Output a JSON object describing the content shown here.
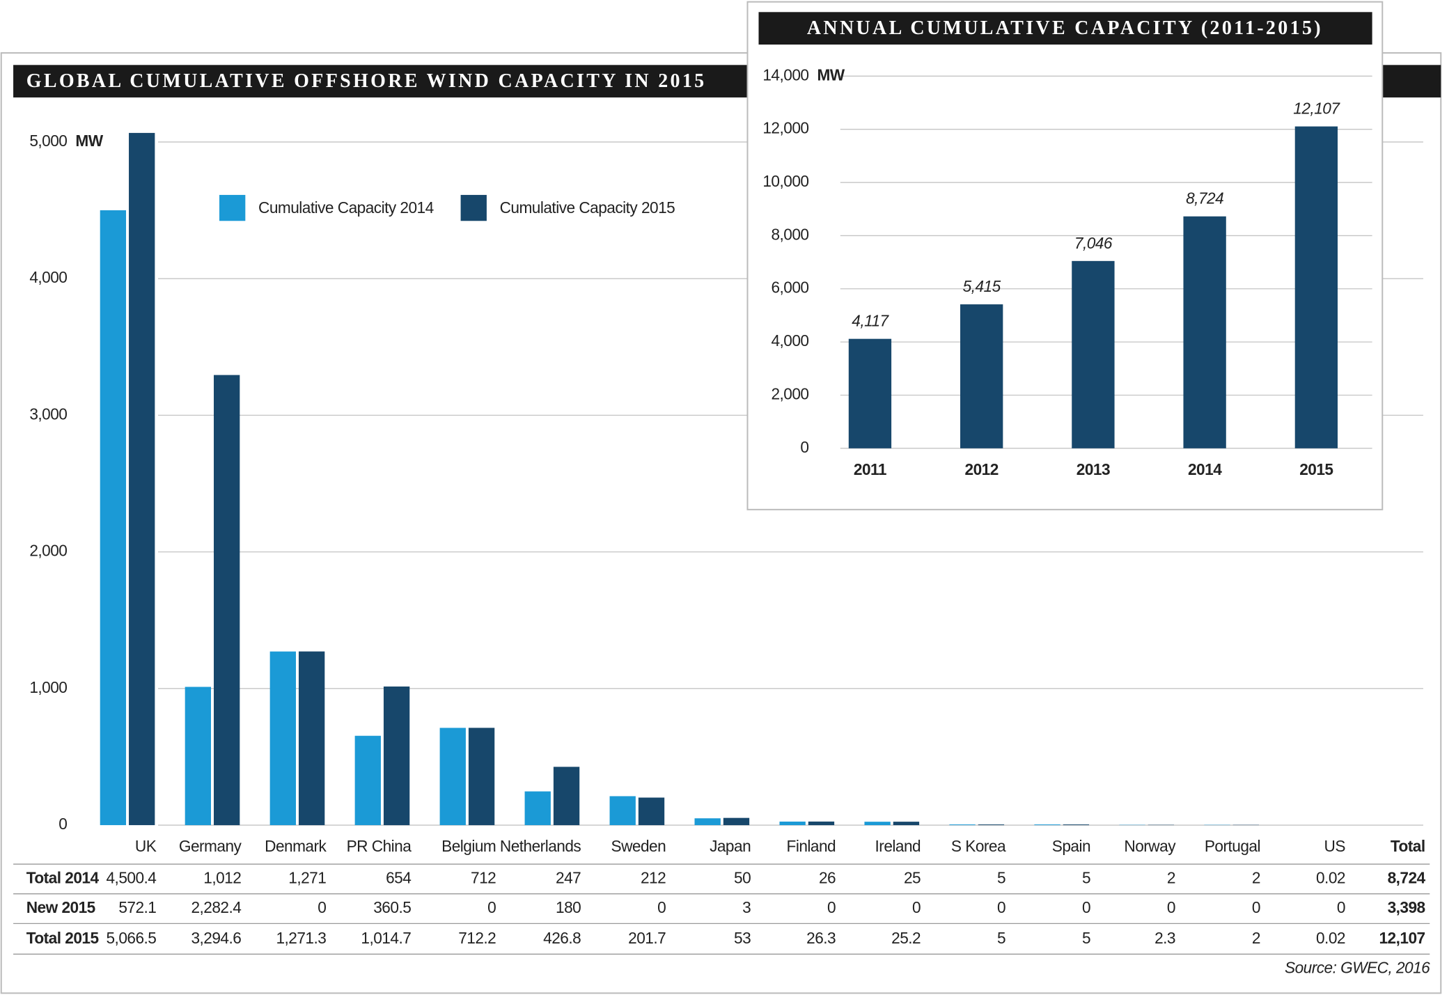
{
  "chart_data": [
    {
      "type": "bar",
      "title": "GLOBAL CUMULATIVE OFFSHORE WIND CAPACITY IN 2015",
      "y_label": "MW",
      "categories": [
        "UK",
        "Germany",
        "Denmark",
        "PR China",
        "Belgium",
        "Netherlands",
        "Sweden",
        "Japan",
        "Finland",
        "Ireland",
        "S Korea",
        "Spain",
        "Norway",
        "Portugal",
        "US"
      ],
      "series": [
        {
          "name": "Cumulative Capacity 2014",
          "color": "#1b9ad6",
          "values": [
            4500.4,
            1012,
            1271,
            654,
            712,
            247,
            212,
            50,
            26,
            25,
            5,
            5,
            2,
            2,
            0.02
          ],
          "value_labels": [
            "4,500.4",
            "1,012",
            "1,271",
            "654",
            "712",
            "247",
            "212",
            "50",
            "26",
            "25",
            "5",
            "5",
            "2",
            "2",
            "0.02"
          ]
        },
        {
          "name": "Cumulative Capacity 2015",
          "color": "#17476b",
          "values": [
            5066.5,
            3294.6,
            1271.3,
            1014.7,
            712.2,
            426.8,
            201.7,
            53,
            26.3,
            25.2,
            5,
            5,
            2.3,
            2,
            0.02
          ],
          "value_labels": [
            "5,066.5",
            "3,294.6",
            "1,271.3",
            "1,014.7",
            "712.2",
            "426.8",
            "201.7",
            "53",
            "26.3",
            "25.2",
            "5",
            "5",
            "2.3",
            "2",
            "0.02"
          ]
        }
      ],
      "ylim": [
        0,
        5000
      ],
      "yticks": [
        0,
        {
          "value": 1000,
          "label": "1,000"
        },
        {
          "value": 2000,
          "label": "2,000"
        },
        {
          "value": 3000,
          "label": "3,000"
        },
        {
          "value": 4000,
          "label": "4,000"
        },
        {
          "value": 5000,
          "label": "5,000"
        }
      ],
      "grid": true,
      "table": {
        "total_header": "Total",
        "rows": [
          {
            "label": "Total 2014",
            "total": "8,724"
          },
          {
            "label": "New 2015",
            "cells": [
              "572.1",
              "2,282.4",
              "0",
              "360.5",
              "0",
              "180",
              "0",
              "3",
              "0",
              "0",
              "0",
              "0",
              "0",
              "0",
              "0"
            ],
            "total": "3,398"
          },
          {
            "label": "Total 2015",
            "total": "12,107"
          }
        ]
      },
      "source": "Source: GWEC, 2016"
    },
    {
      "type": "bar",
      "title": "ANNUAL CUMULATIVE CAPACITY (2011-2015)",
      "y_label": "MW",
      "categories": [
        "2011",
        "2012",
        "2013",
        "2014",
        "2015"
      ],
      "values": [
        4117,
        5415,
        7046,
        8724,
        12107
      ],
      "value_labels": [
        "4,117",
        "5,415",
        "7,046",
        "8,724",
        "12,107"
      ],
      "color": "#17476b",
      "ylim": [
        0,
        14000
      ],
      "yticks": [
        0,
        {
          "value": 2000,
          "label": "2,000"
        },
        {
          "value": 4000,
          "label": "4,000"
        },
        {
          "value": 6000,
          "label": "6,000"
        },
        {
          "value": 8000,
          "label": "8,000"
        },
        {
          "value": 10000,
          "label": "10,000"
        },
        {
          "value": 12000,
          "label": "12,000"
        },
        {
          "value": 14000,
          "label": "14,000"
        }
      ],
      "grid": true
    }
  ]
}
